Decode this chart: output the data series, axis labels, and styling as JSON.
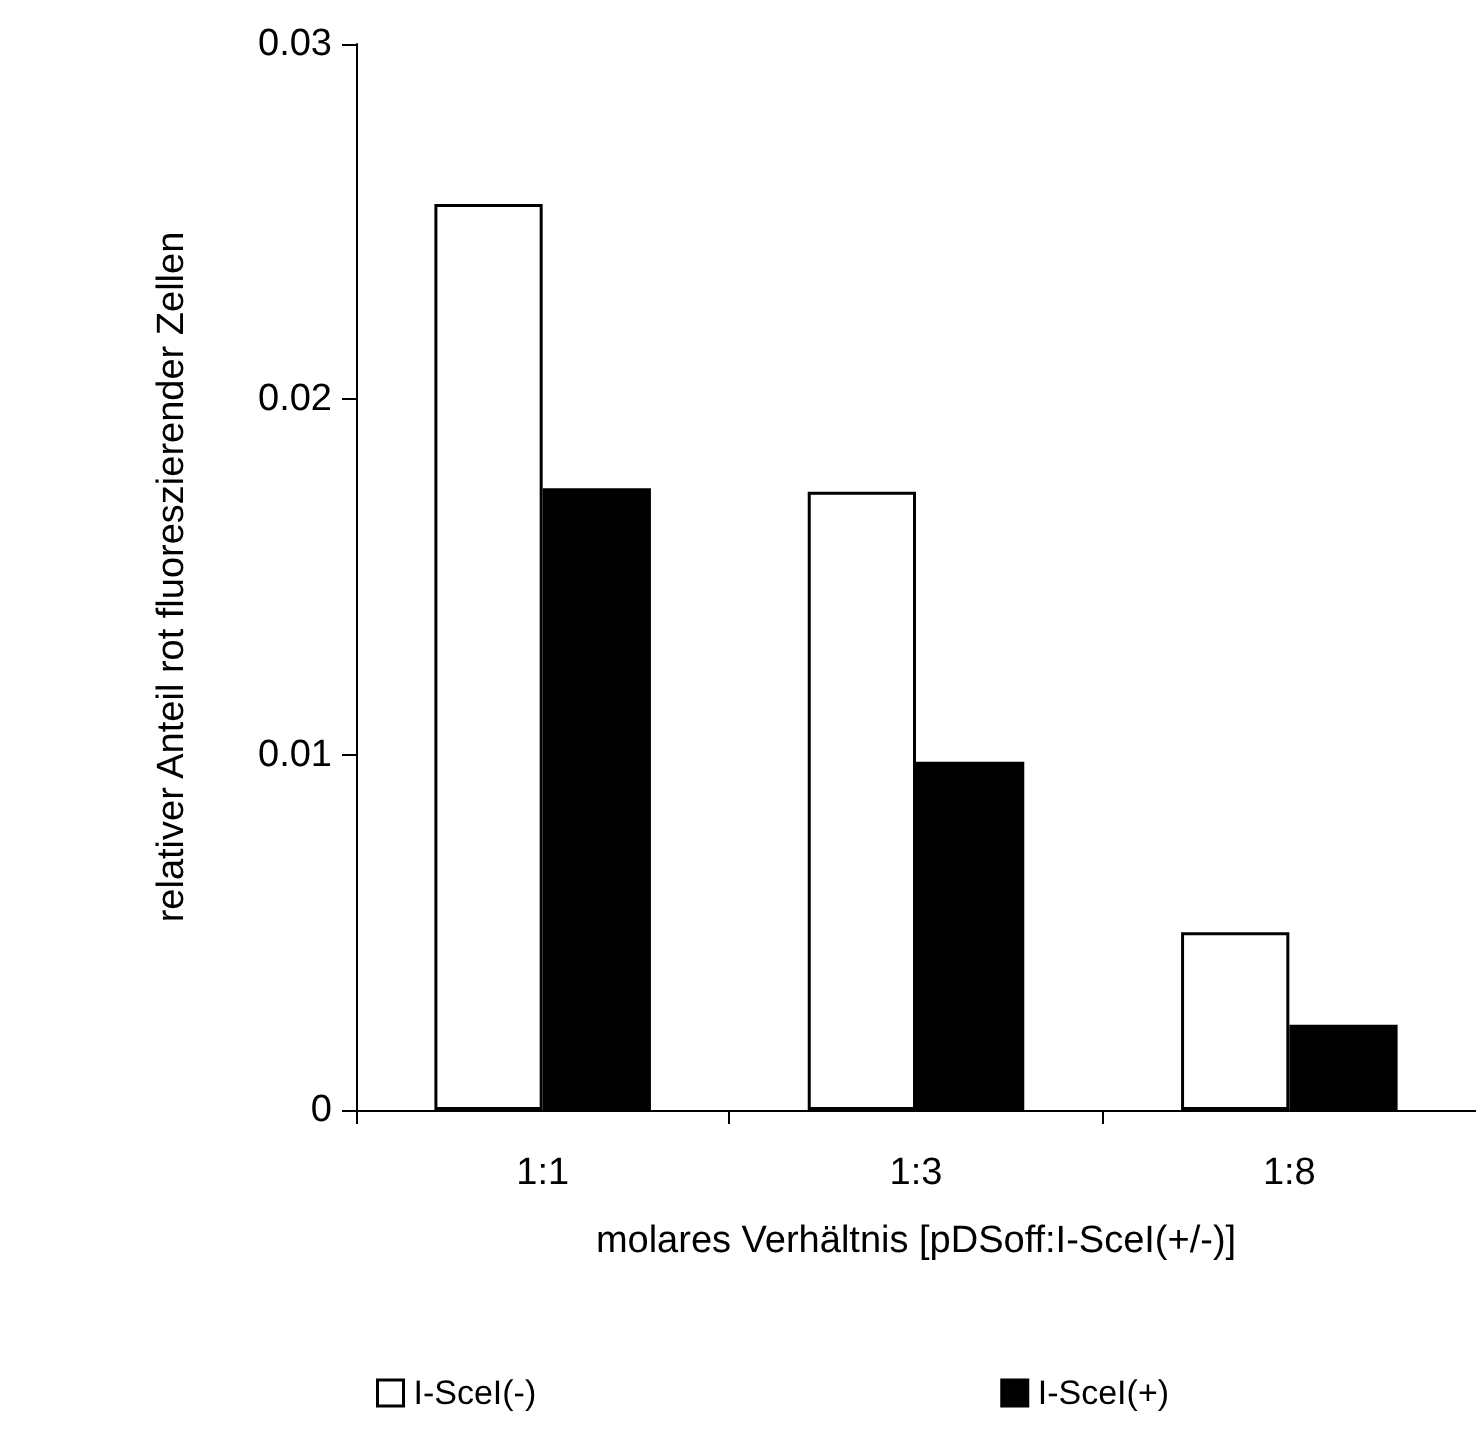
{
  "chart_data": {
    "type": "bar",
    "xlabel": "molares Verhältnis [pDSoff:I-SceI(+/-)]",
    "ylabel": "relativer Anteil rot fluoreszierender Zellen",
    "categories": [
      "1:1",
      "1:3",
      "1:8"
    ],
    "series": [
      {
        "name": "I-SceI(-)",
        "color": "#ffffff",
        "values": [
          0.0255,
          0.0174,
          0.005
        ]
      },
      {
        "name": "I-SceI(+)",
        "color": "#000000",
        "values": [
          0.0175,
          0.0098,
          0.0024
        ]
      }
    ],
    "ylim": [
      0,
      0.03
    ],
    "yticks": [
      0,
      0.01,
      0.02,
      0.03
    ],
    "grid": false,
    "legend": "bottom"
  }
}
